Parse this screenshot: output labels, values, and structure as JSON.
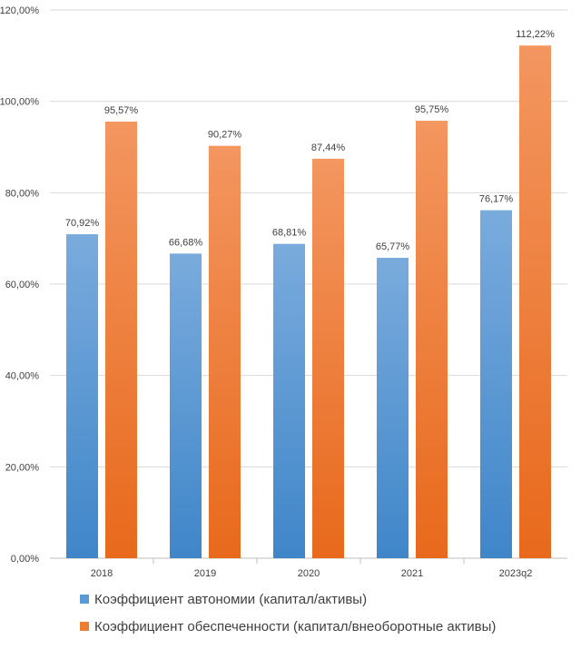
{
  "chart_data": {
    "type": "bar",
    "categories": [
      "2018",
      "2019",
      "2020",
      "2021",
      "2023q2"
    ],
    "series": [
      {
        "name": "Коэффициент автономии (капитал/активы)",
        "color": "#5b9bd5",
        "values": [
          70.92,
          66.68,
          68.81,
          65.77,
          76.17
        ],
        "labels": [
          "70,92%",
          "66,68%",
          "68,81%",
          "65,77%",
          "76,17%"
        ]
      },
      {
        "name": "Коэффициент обеспеченности (капитал/внеоборотные активы)",
        "color": "#ed7d31",
        "values": [
          95.57,
          90.27,
          87.44,
          95.75,
          112.22
        ],
        "labels": [
          "95,57%",
          "90,27%",
          "87,44%",
          "95,75%",
          "112,22%"
        ]
      }
    ],
    "ylim": [
      0,
      120
    ],
    "yticks": [
      0,
      20,
      40,
      60,
      80,
      100,
      120
    ],
    "ytick_labels": [
      "0,00%",
      "20,00%",
      "40,00%",
      "60,00%",
      "80,00%",
      "100,00%",
      "120,00%"
    ],
    "title": "",
    "xlabel": "",
    "ylabel": "",
    "grid": true,
    "legend_position": "bottom-left"
  }
}
